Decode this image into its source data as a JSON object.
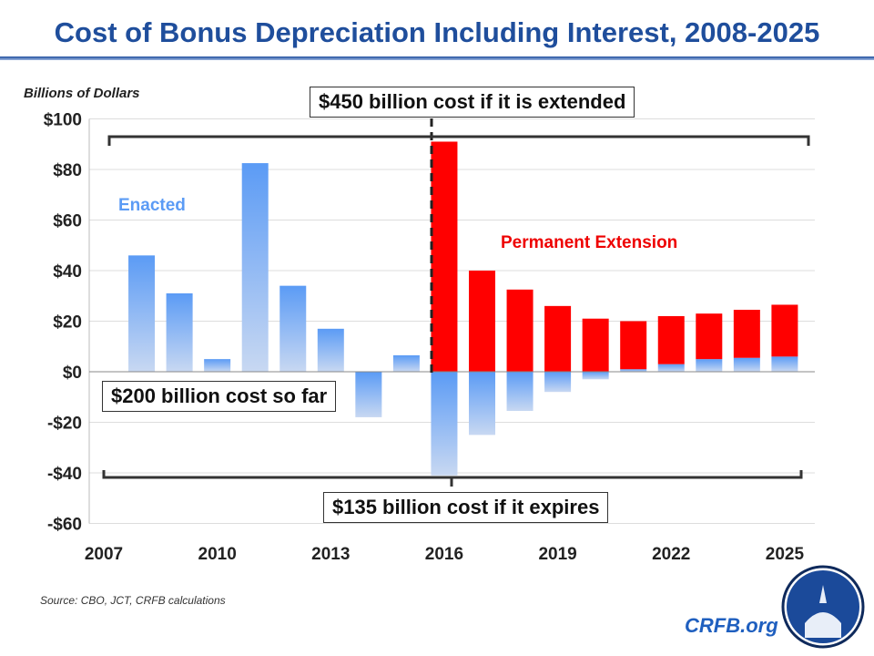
{
  "title": "Cost of Bonus Depreciation Including Interest, 2008-2025",
  "source": "Source: CBO, JCT, CRFB calculations",
  "brand": "CRFB.org",
  "chart_data": {
    "type": "bar",
    "title": "Cost of Bonus Depreciation Including Interest, 2008-2025",
    "ylabel": "Billions of Dollars",
    "ylim": [
      -60,
      100
    ],
    "yticks": [
      100,
      80,
      60,
      40,
      20,
      0,
      -20,
      -40,
      -60
    ],
    "ytick_labels": [
      "$100",
      "$80",
      "$60",
      "$40",
      "$20",
      "$0",
      "-$20",
      "-$40",
      "-$60"
    ],
    "xlim": [
      2007,
      2025
    ],
    "xticks": [
      2007,
      2010,
      2013,
      2016,
      2019,
      2022,
      2025
    ],
    "x": [
      2008,
      2009,
      2010,
      2011,
      2012,
      2013,
      2014,
      2015,
      2016,
      2017,
      2018,
      2019,
      2020,
      2021,
      2022,
      2023,
      2024,
      2025
    ],
    "series": [
      {
        "name": "Enacted",
        "color": "#5b9bf5",
        "values": [
          46,
          31,
          5,
          82.5,
          34,
          17,
          -18,
          6.5,
          -41,
          -25,
          -15.5,
          -8,
          -3,
          1,
          3,
          5,
          5.5,
          6
        ]
      },
      {
        "name": "Permanent Extension",
        "color": "#ff0000",
        "values": [
          0,
          0,
          0,
          0,
          0,
          0,
          0,
          0,
          91,
          40,
          32.5,
          26,
          21,
          19,
          19,
          18,
          19,
          20.5
        ]
      }
    ],
    "annotations": [
      "$450 billion cost if it is extended",
      "$200 billion cost so far",
      "$135 billion cost if it expires"
    ],
    "grid": true
  },
  "colors": {
    "title": "#1f4e9c",
    "red": "#ff0000",
    "blue": "#5b9bf5"
  }
}
